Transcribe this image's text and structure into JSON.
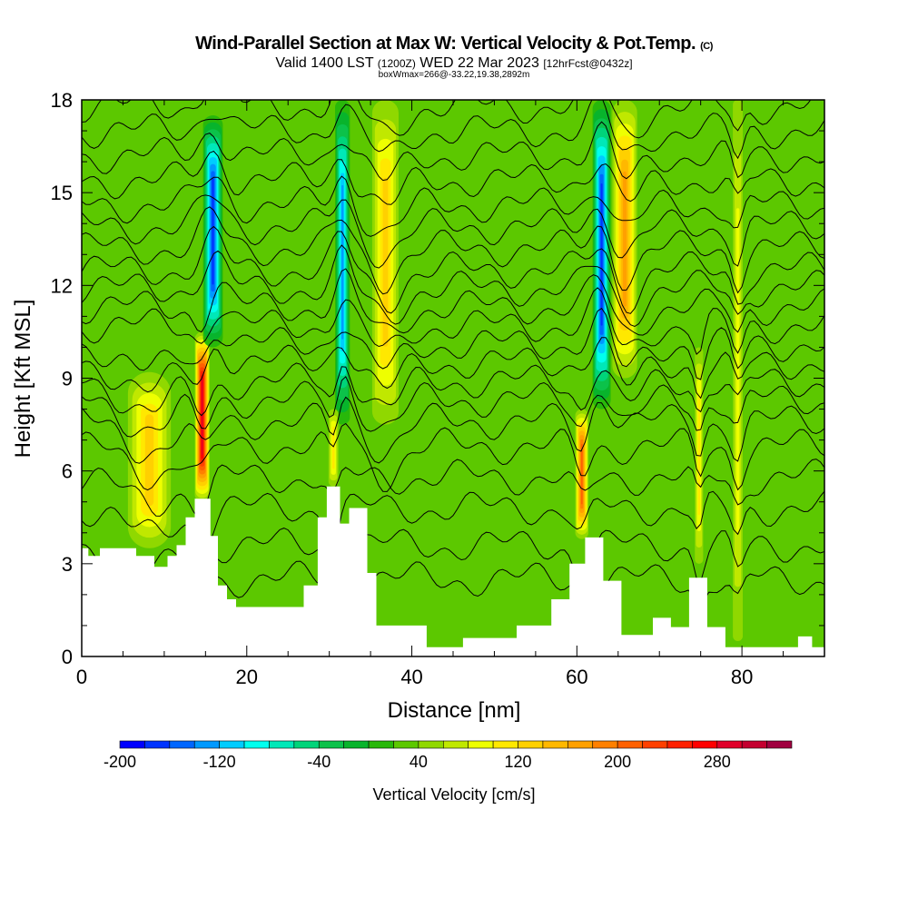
{
  "chart_data": {
    "type": "heatmap",
    "title": "Wind-Parallel Section at Max W: Vertical Velocity & Pot.Temp.",
    "title_mark": "(C)",
    "subtitle_valid": "Valid 1400 LST",
    "subtitle_utc": "(1200Z)",
    "subtitle_date": "WED 22 Mar 2023",
    "subtitle_fcst": "[12hrFcst@0432z]",
    "box_info": "boxWmax=266@-33.22,19.38,2892m",
    "xlabel": "Distance [nm]",
    "ylabel": "Height [Kft MSL]",
    "xlim": [
      0,
      90
    ],
    "ylim": [
      0,
      18
    ],
    "xticks": [
      "0",
      "20",
      "40",
      "60",
      "80"
    ],
    "yticks": [
      "0",
      "3",
      "6",
      "9",
      "12",
      "15",
      "18"
    ],
    "background_w": 20,
    "w_features": [
      {
        "x": 8.2,
        "halfwidth": 2.6,
        "z0": 3.5,
        "z1": 9.2,
        "w": 110
      },
      {
        "x": 14.6,
        "halfwidth": 0.9,
        "z0": 5.0,
        "z1": 10.5,
        "w": 280
      },
      {
        "x": 15.9,
        "halfwidth": 1.2,
        "z0": 10.0,
        "z1": 17.5,
        "w": -170
      },
      {
        "x": 31.6,
        "halfwidth": 0.9,
        "z0": 7.5,
        "z1": 18,
        "w": -140
      },
      {
        "x": 36.8,
        "halfwidth": 1.6,
        "z0": 7.5,
        "z1": 18,
        "w": 120
      },
      {
        "x": 30.5,
        "halfwidth": 0.6,
        "z0": 5.5,
        "z1": 8,
        "w": 90
      },
      {
        "x": 60.6,
        "halfwidth": 0.8,
        "z0": 3.8,
        "z1": 8,
        "w": 200
      },
      {
        "x": 63.0,
        "halfwidth": 1.1,
        "z0": 8,
        "z1": 18,
        "w": -180
      },
      {
        "x": 65.8,
        "halfwidth": 1.5,
        "z0": 9,
        "z1": 18,
        "w": 150
      },
      {
        "x": 74.8,
        "halfwidth": 0.5,
        "z0": 3,
        "z1": 10,
        "w": 90
      },
      {
        "x": 79.5,
        "halfwidth": 0.6,
        "z0": 0.5,
        "z1": 18,
        "w": 70
      }
    ],
    "terrain": [
      [
        0,
        3.5
      ],
      [
        0.8,
        3.5
      ],
      [
        0.8,
        3.25
      ],
      [
        2.2,
        3.25
      ],
      [
        2.2,
        3.5
      ],
      [
        6.6,
        3.5
      ],
      [
        6.6,
        3.25
      ],
      [
        8.8,
        3.25
      ],
      [
        8.8,
        2.9
      ],
      [
        10.4,
        2.9
      ],
      [
        10.4,
        3.25
      ],
      [
        11.5,
        3.25
      ],
      [
        11.5,
        3.6
      ],
      [
        12.6,
        3.6
      ],
      [
        12.6,
        4.5
      ],
      [
        13.7,
        4.5
      ],
      [
        13.7,
        5.1
      ],
      [
        15.6,
        5.1
      ],
      [
        15.6,
        3.9
      ],
      [
        16.5,
        3.9
      ],
      [
        16.5,
        2.3
      ],
      [
        17.6,
        2.3
      ],
      [
        17.6,
        1.85
      ],
      [
        18.7,
        1.85
      ],
      [
        18.7,
        1.6
      ],
      [
        26.9,
        1.6
      ],
      [
        26.9,
        2.3
      ],
      [
        28.6,
        2.3
      ],
      [
        28.6,
        4.5
      ],
      [
        29.7,
        4.5
      ],
      [
        29.7,
        5.5
      ],
      [
        31.3,
        5.5
      ],
      [
        31.3,
        4.3
      ],
      [
        32.4,
        4.3
      ],
      [
        32.4,
        4.8
      ],
      [
        34.6,
        4.8
      ],
      [
        34.6,
        2.7
      ],
      [
        35.7,
        2.7
      ],
      [
        35.7,
        1.0
      ],
      [
        41.8,
        1.0
      ],
      [
        41.8,
        0.3
      ],
      [
        46.2,
        0.3
      ],
      [
        46.2,
        0.6
      ],
      [
        52.7,
        0.6
      ],
      [
        52.7,
        1.0
      ],
      [
        56.9,
        1.0
      ],
      [
        56.9,
        1.85
      ],
      [
        59.1,
        1.85
      ],
      [
        59.1,
        3.0
      ],
      [
        61.0,
        3.0
      ],
      [
        61.0,
        3.85
      ],
      [
        63.2,
        3.85
      ],
      [
        63.2,
        2.45
      ],
      [
        65.4,
        2.45
      ],
      [
        65.4,
        0.7
      ],
      [
        69.2,
        0.7
      ],
      [
        69.2,
        1.25
      ],
      [
        71.4,
        1.25
      ],
      [
        71.4,
        0.95
      ],
      [
        73.6,
        0.95
      ],
      [
        73.6,
        2.55
      ],
      [
        75.8,
        2.55
      ],
      [
        75.8,
        0.95
      ],
      [
        78.0,
        0.95
      ],
      [
        78.0,
        0.3
      ],
      [
        86.8,
        0.3
      ],
      [
        86.8,
        0.65
      ],
      [
        88.5,
        0.65
      ],
      [
        88.5,
        0.3
      ],
      [
        90,
        0.3
      ]
    ],
    "theta_contour_heights": [
      2.5,
      3.6,
      4.8,
      5.8,
      6.8,
      7.6,
      8.3,
      8.9,
      9.5,
      10.1,
      10.7,
      11.3,
      11.9,
      12.5,
      13.2,
      13.9,
      14.6,
      15.4,
      16.2,
      17.0,
      17.8
    ],
    "colorbar": {
      "label": "Vertical Velocity [cm/s]",
      "min": -200,
      "max": 340,
      "step": 20,
      "ticks": [
        "-200",
        "-120",
        "-40",
        "40",
        "120",
        "200",
        "280"
      ],
      "colors": [
        "#0000ff",
        "#0033ff",
        "#0066ff",
        "#0099ff",
        "#00ccff",
        "#00ffee",
        "#00e8b8",
        "#00d47a",
        "#0cc24a",
        "#08b42c",
        "#28b80a",
        "#5cc800",
        "#90d800",
        "#c0e800",
        "#eeff00",
        "#ffe800",
        "#ffd000",
        "#ffb800",
        "#ffa000",
        "#ff8000",
        "#ff6000",
        "#ff4000",
        "#ff2000",
        "#ff0000",
        "#e0002a",
        "#c40030",
        "#a00040"
      ]
    }
  }
}
